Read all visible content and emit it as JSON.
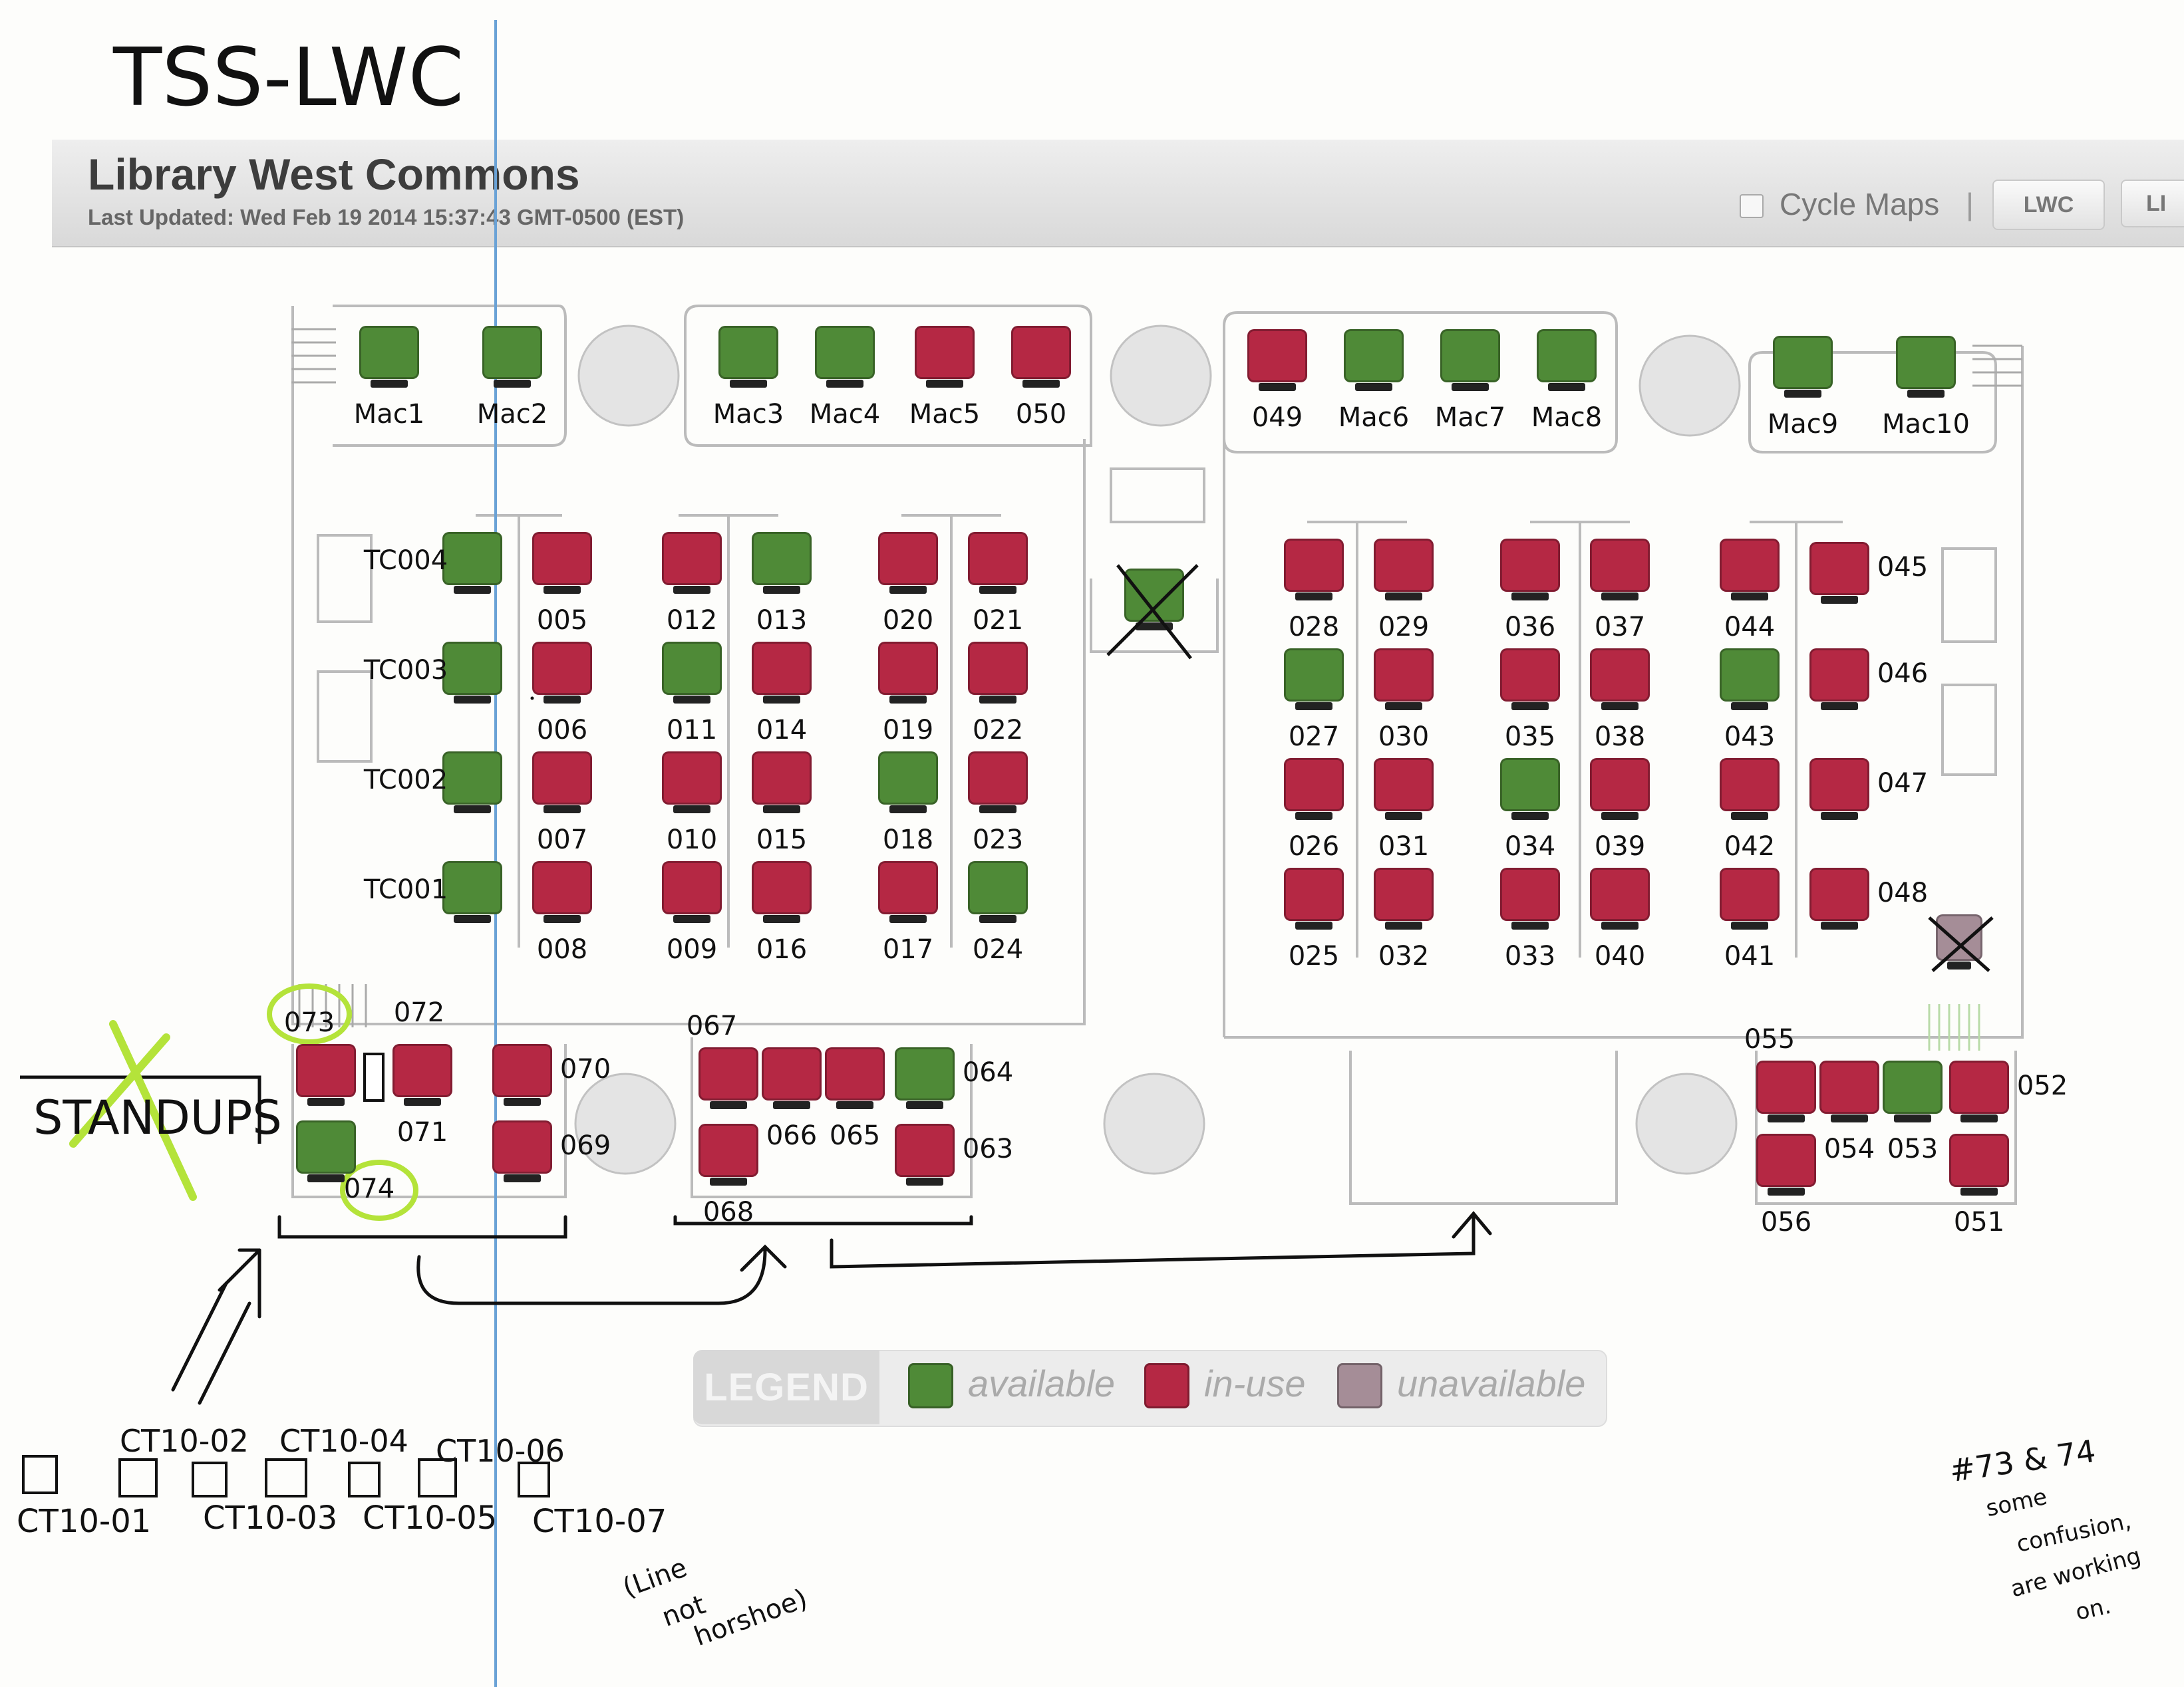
{
  "annotation_title": "TSS-LWC",
  "header": {
    "title": "Library West Commons",
    "last_updated": "Last Updated: Wed Feb 19 2014 15:37:43 GMT-0500 (EST)",
    "cycle_label": "Cycle Maps",
    "cycle_separator": "|",
    "tabs": [
      "LWC",
      "LI"
    ]
  },
  "colors": {
    "available": "#4f8a37",
    "in_use": "#b52844",
    "unavailable": "#a58d97"
  },
  "stations": [
    {
      "id": "Mac1",
      "status": "available"
    },
    {
      "id": "Mac2",
      "status": "available"
    },
    {
      "id": "Mac3",
      "status": "available"
    },
    {
      "id": "Mac4",
      "status": "available"
    },
    {
      "id": "Mac5",
      "status": "in-use"
    },
    {
      "id": "050",
      "status": "in-use"
    },
    {
      "id": "049",
      "status": "in-use"
    },
    {
      "id": "Mac6",
      "status": "available"
    },
    {
      "id": "Mac7",
      "status": "available"
    },
    {
      "id": "Mac8",
      "status": "available"
    },
    {
      "id": "Mac9",
      "status": "available"
    },
    {
      "id": "Mac10",
      "status": "available"
    },
    {
      "id": "TC004",
      "status": "available"
    },
    {
      "id": "TC003",
      "status": "available"
    },
    {
      "id": "TC002",
      "status": "available"
    },
    {
      "id": "TC001",
      "status": "available"
    },
    {
      "id": "005",
      "status": "in-use"
    },
    {
      "id": "006",
      "status": "in-use"
    },
    {
      "id": "007",
      "status": "in-use"
    },
    {
      "id": "008",
      "status": "in-use"
    },
    {
      "id": "012",
      "status": "in-use"
    },
    {
      "id": "011",
      "status": "available"
    },
    {
      "id": "010",
      "status": "in-use"
    },
    {
      "id": "009",
      "status": "in-use"
    },
    {
      "id": "013",
      "status": "available"
    },
    {
      "id": "014",
      "status": "in-use"
    },
    {
      "id": "015",
      "status": "in-use"
    },
    {
      "id": "016",
      "status": "in-use"
    },
    {
      "id": "020",
      "status": "in-use"
    },
    {
      "id": "019",
      "status": "in-use"
    },
    {
      "id": "018",
      "status": "available"
    },
    {
      "id": "017",
      "status": "in-use"
    },
    {
      "id": "021",
      "status": "in-use"
    },
    {
      "id": "022",
      "status": "in-use"
    },
    {
      "id": "023",
      "status": "in-use"
    },
    {
      "id": "024",
      "status": "available"
    },
    {
      "id": "028",
      "status": "in-use"
    },
    {
      "id": "027",
      "status": "available"
    },
    {
      "id": "026",
      "status": "in-use"
    },
    {
      "id": "025",
      "status": "in-use"
    },
    {
      "id": "029",
      "status": "in-use"
    },
    {
      "id": "030",
      "status": "in-use"
    },
    {
      "id": "031",
      "status": "in-use"
    },
    {
      "id": "032",
      "status": "in-use"
    },
    {
      "id": "036",
      "status": "in-use"
    },
    {
      "id": "035",
      "status": "in-use"
    },
    {
      "id": "034",
      "status": "available"
    },
    {
      "id": "033",
      "status": "in-use"
    },
    {
      "id": "037",
      "status": "in-use"
    },
    {
      "id": "038",
      "status": "in-use"
    },
    {
      "id": "039",
      "status": "in-use"
    },
    {
      "id": "040",
      "status": "in-use"
    },
    {
      "id": "044",
      "status": "in-use"
    },
    {
      "id": "043",
      "status": "available"
    },
    {
      "id": "042",
      "status": "in-use"
    },
    {
      "id": "041",
      "status": "in-use"
    },
    {
      "id": "045",
      "status": "in-use"
    },
    {
      "id": "046",
      "status": "in-use"
    },
    {
      "id": "047",
      "status": "in-use"
    },
    {
      "id": "048",
      "status": "in-use"
    },
    {
      "id": "073",
      "status": "in-use"
    },
    {
      "id": "074",
      "status": "available"
    },
    {
      "id": "071",
      "status": "in-use"
    },
    {
      "id": "070",
      "status": "in-use"
    },
    {
      "id": "069",
      "status": "in-use"
    },
    {
      "id": "067",
      "status": "in-use"
    },
    {
      "id": "066",
      "status": "in-use"
    },
    {
      "id": "065",
      "status": "in-use"
    },
    {
      "id": "064",
      "status": "available"
    },
    {
      "id": "068",
      "status": "in-use"
    },
    {
      "id": "063",
      "status": "in-use"
    },
    {
      "id": "055",
      "status": "in-use"
    },
    {
      "id": "054",
      "status": "in-use"
    },
    {
      "id": "053",
      "status": "available"
    },
    {
      "id": "052",
      "status": "in-use"
    },
    {
      "id": "056",
      "status": "in-use"
    },
    {
      "id": "051",
      "status": "in-use"
    }
  ],
  "crossed_out_stations": [
    "center-desk",
    "near-048"
  ],
  "extra_labels": {
    "station_072": "072"
  },
  "legend": {
    "title": "LEGEND",
    "available": "available",
    "in_use": "in-use",
    "unavailable": "unavailable"
  },
  "annotations": {
    "standups": "STANDUPS",
    "ct_labels_top": [
      "CT10-02",
      "CT10-04",
      "CT10-06"
    ],
    "ct_labels_bottom": [
      "CT10-01",
      "CT10-03",
      "CT10-05",
      "CT10-07"
    ],
    "line_note": [
      "(Line",
      "not",
      "horshoe)"
    ],
    "bottom_right_note": [
      "#73 & 74",
      "some",
      "confusion,",
      "are working",
      "on."
    ]
  }
}
